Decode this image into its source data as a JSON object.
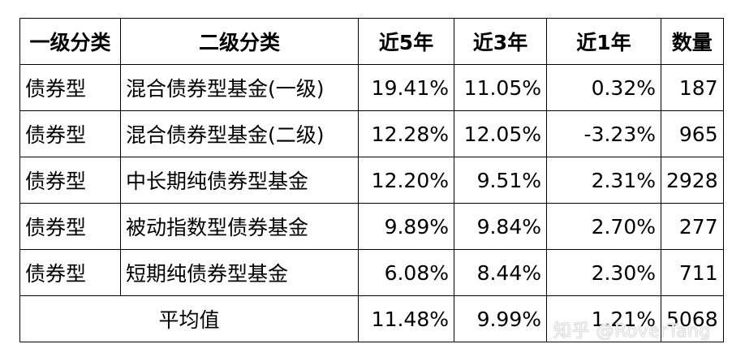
{
  "table": {
    "headers": [
      "一级分类",
      "二级分类",
      "近5年",
      "近3年",
      "近1年",
      "数量"
    ],
    "rows": [
      {
        "cat1": "债券型",
        "cat2": "混合债券型基金(一级)",
        "y5": "19.41%",
        "y3": "11.05%",
        "y1": "0.32%",
        "count": "187"
      },
      {
        "cat1": "债券型",
        "cat2": "混合债券型基金(二级)",
        "y5": "12.28%",
        "y3": "12.05%",
        "y1": "-3.23%",
        "count": "965"
      },
      {
        "cat1": "债券型",
        "cat2": "中长期纯债券型基金",
        "y5": "12.20%",
        "y3": "9.51%",
        "y1": "2.31%",
        "count": "2928"
      },
      {
        "cat1": "债券型",
        "cat2": "被动指数型债券基金",
        "y5": "9.89%",
        "y3": "9.84%",
        "y1": "2.70%",
        "count": "277"
      },
      {
        "cat1": "债券型",
        "cat2": "短期纯债券型基金",
        "y5": "6.08%",
        "y3": "8.44%",
        "y1": "2.30%",
        "count": "711"
      }
    ],
    "average": {
      "label": "平均值",
      "y5": "11.48%",
      "y3": "9.99%",
      "y1": "1.21%",
      "count": "5068"
    }
  },
  "watermark": "知乎 @RoverTang"
}
